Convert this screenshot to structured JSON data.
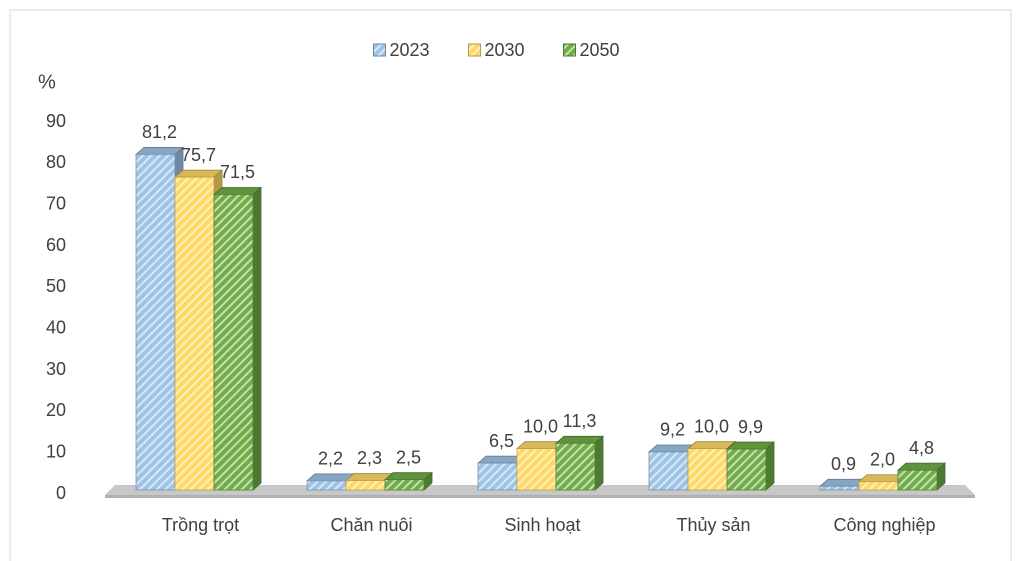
{
  "chart_data": {
    "type": "bar3d",
    "y_label": "%",
    "categories": [
      "Trồng trọt",
      "Chăn nuôi",
      "Sinh hoạt",
      "Thủy sản",
      "Công nghiệp"
    ],
    "series": [
      {
        "name": "2023",
        "color": "#9dc3e6",
        "values": [
          81.2,
          2.2,
          6.5,
          9.2,
          0.9
        ],
        "value_labels": [
          "81,2",
          "2,2",
          "6,5",
          "9,2",
          "0,9"
        ]
      },
      {
        "name": "2030",
        "color": "#ffd966",
        "values": [
          75.7,
          2.3,
          10.0,
          10.0,
          2.0
        ],
        "value_labels": [
          "75,7",
          "2,3",
          "10,0",
          "10,0",
          "2,0"
        ]
      },
      {
        "name": "2050",
        "color": "#70ad47",
        "values": [
          71.5,
          2.5,
          11.3,
          9.9,
          4.8
        ],
        "value_labels": [
          "71,5",
          "2,5",
          "11,3",
          "9,9",
          "4,8"
        ]
      }
    ],
    "ylim": [
      0,
      90
    ],
    "yticks": [
      0,
      10,
      20,
      30,
      40,
      50,
      60,
      70,
      80,
      90
    ],
    "grid": false,
    "legend": "top"
  }
}
